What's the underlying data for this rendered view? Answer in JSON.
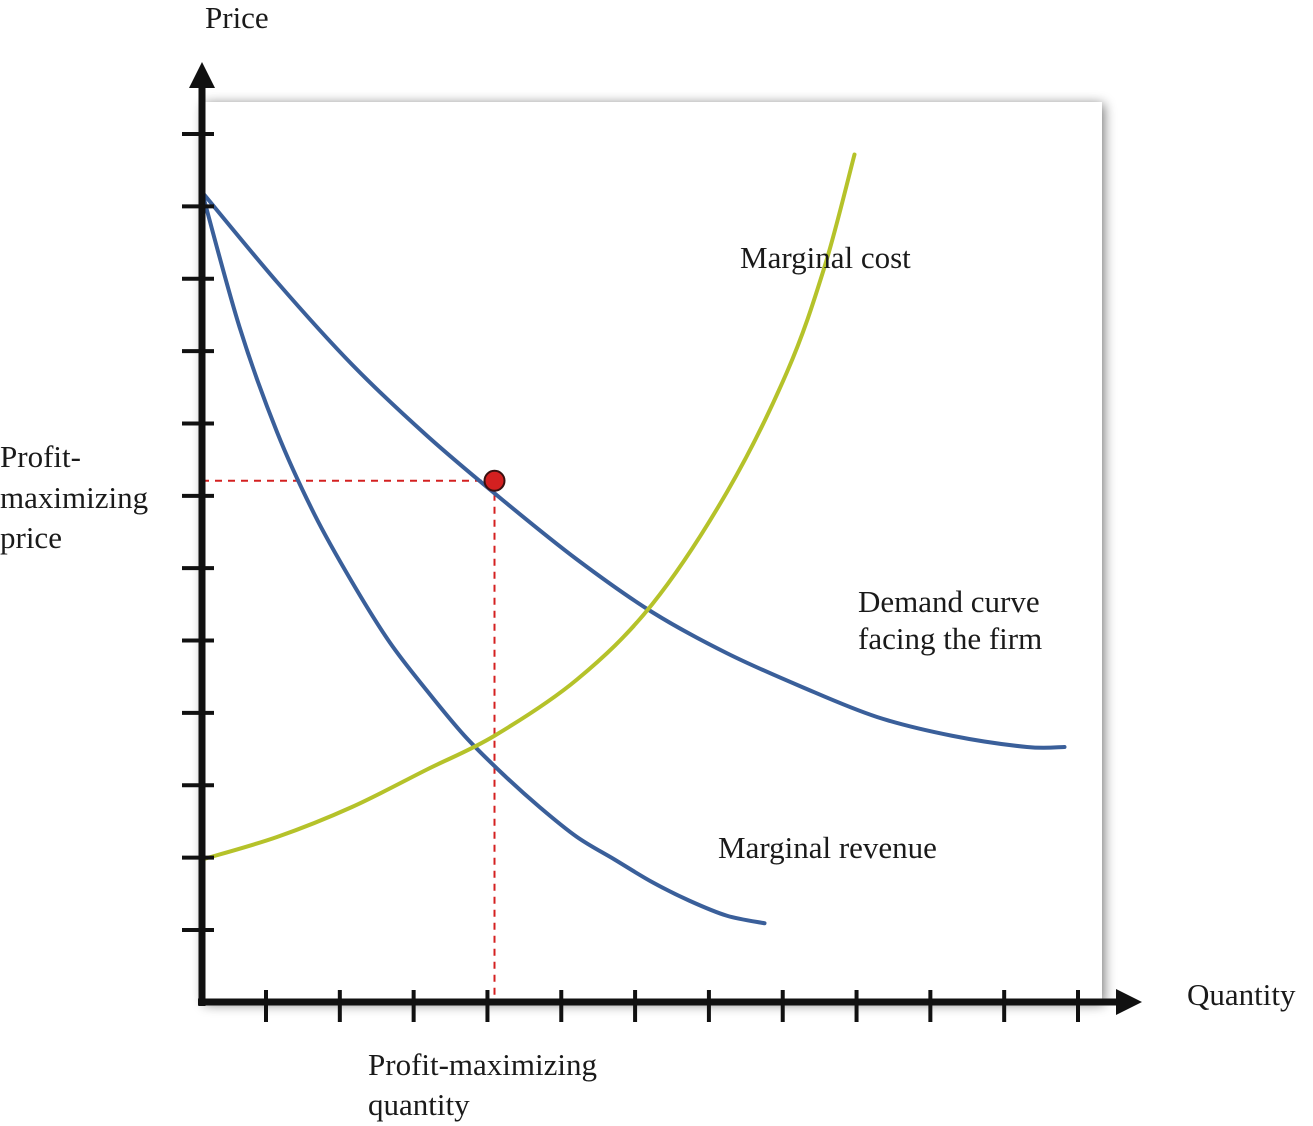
{
  "chart_data": {
    "type": "line",
    "title": "",
    "xlabel": "Quantity",
    "ylabel": "Price",
    "xlim": [
      0,
      12
    ],
    "ylim": [
      0,
      12
    ],
    "xticks": [
      1,
      2,
      3,
      4,
      5,
      6,
      7,
      8,
      9,
      10,
      11,
      12
    ],
    "yticks": [
      1,
      2,
      3,
      4,
      5,
      6,
      7,
      8,
      9,
      10,
      11,
      12
    ],
    "grid": false,
    "legend": "none",
    "series": [
      {
        "name": "Demand curve facing the firm",
        "color": "#3a5f9a",
        "x": [
          0,
          1,
          2,
          3,
          4,
          5,
          6,
          7,
          8,
          9,
          10,
          11,
          11.5
        ],
        "y": [
          10.8,
          9.6,
          8.5,
          7.55,
          6.7,
          5.9,
          5.2,
          4.65,
          4.2,
          3.8,
          3.55,
          3.4,
          3.4
        ]
      },
      {
        "name": "Marginal revenue",
        "color": "#3a5f9a",
        "x": [
          0,
          0.5,
          1,
          1.5,
          2,
          2.5,
          3,
          3.5,
          4,
          4.5,
          5,
          5.5,
          6,
          6.5,
          7,
          7.5
        ],
        "y": [
          10.8,
          9.0,
          7.6,
          6.5,
          5.6,
          4.8,
          4.15,
          3.55,
          3.05,
          2.6,
          2.2,
          1.9,
          1.6,
          1.35,
          1.15,
          1.05
        ]
      },
      {
        "name": "Marginal cost",
        "color": "#b5c22a",
        "x": [
          0,
          1,
          2,
          3,
          3.9,
          5,
          6,
          7,
          7.8,
          8.3,
          8.7
        ],
        "y": [
          1.9,
          2.2,
          2.6,
          3.1,
          3.55,
          4.3,
          5.3,
          6.8,
          8.4,
          9.8,
          11.3
        ]
      }
    ],
    "point": {
      "x": 3.9,
      "y": 6.95,
      "color": "#d42020"
    },
    "annotations": {
      "marginal_cost": "Marginal cost",
      "demand_line1": "Demand curve",
      "demand_line2": "facing the firm",
      "marginal_revenue": "Marginal revenue",
      "price_line1": "Profit-",
      "price_line2": "maximizing",
      "price_line3": "price",
      "quantity_line1": "Profit-maximizing",
      "quantity_line2": "quantity"
    },
    "colors": {
      "axis": "#111111",
      "guide": "#d42020",
      "panel_shadow": "#b8b8b8"
    }
  }
}
